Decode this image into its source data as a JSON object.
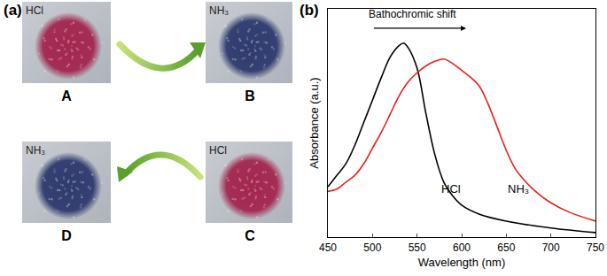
{
  "panel_a": {
    "label": "(a)",
    "photos": [
      {
        "id": "A",
        "gas": "HCl",
        "color": "#a3264f"
      },
      {
        "id": "B",
        "gas": "NH₃",
        "color": "#2f3a6e"
      },
      {
        "id": "C",
        "gas": "HCl",
        "color": "#a3264f"
      },
      {
        "id": "D",
        "gas": "NH₃",
        "color": "#2f3a6e"
      }
    ]
  },
  "panel_b_label": "(b)",
  "chart_data": {
    "type": "line",
    "x_label": "Wavelength (nm)",
    "y_label": "Absorbance (a.u.)",
    "annotations": [
      "Bathochromic shift"
    ],
    "series": [
      {
        "name": "HCl",
        "color": "#000000",
        "x": [
          450,
          460,
          470,
          480,
          490,
          500,
          510,
          520,
          530,
          535,
          540,
          550,
          560,
          570,
          580,
          590,
          600,
          620,
          650,
          700,
          750
        ],
        "values": [
          0.22,
          0.27,
          0.32,
          0.4,
          0.5,
          0.6,
          0.7,
          0.79,
          0.84,
          0.85,
          0.83,
          0.74,
          0.54,
          0.36,
          0.24,
          0.18,
          0.14,
          0.1,
          0.07,
          0.04,
          0.02
        ]
      },
      {
        "name": "NH₃",
        "color": "#e8201a",
        "x": [
          450,
          460,
          470,
          480,
          490,
          500,
          510,
          520,
          530,
          540,
          550,
          560,
          570,
          580,
          590,
          600,
          610,
          620,
          630,
          640,
          650,
          660,
          670,
          680,
          700,
          720,
          750
        ],
        "values": [
          0.2,
          0.21,
          0.24,
          0.27,
          0.32,
          0.39,
          0.46,
          0.54,
          0.62,
          0.68,
          0.72,
          0.75,
          0.77,
          0.78,
          0.76,
          0.73,
          0.7,
          0.66,
          0.58,
          0.48,
          0.38,
          0.3,
          0.25,
          0.21,
          0.15,
          0.11,
          0.07
        ]
      }
    ],
    "xlim": [
      450,
      750
    ],
    "xticks": [
      450,
      500,
      550,
      600,
      650,
      700,
      750
    ],
    "ylim": [
      0,
      1
    ],
    "yticks": [],
    "tick_labels": "x",
    "grid": false
  }
}
